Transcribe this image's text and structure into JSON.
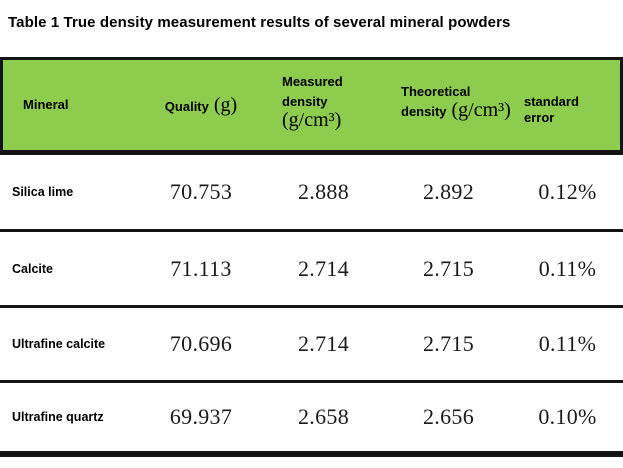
{
  "title": "Table 1 True density measurement results of several mineral powders",
  "colors": {
    "header_background": "#8ecc4e",
    "rule_lines": "#141414",
    "text": "#000000"
  },
  "header": {
    "cells": [
      {
        "label": "Mineral",
        "unit": ""
      },
      {
        "label": "Quality",
        "unit": "(g)"
      },
      {
        "label": "Measured density",
        "unit": "(g/cm³)"
      },
      {
        "label": "Theoretical density",
        "unit": "(g/cm³)"
      },
      {
        "label": "standard error",
        "unit": ""
      }
    ]
  },
  "chart_data": {
    "type": "table",
    "title": "Table 1 True density measurement results of several mineral powders",
    "columns": [
      "Mineral",
      "Quality (g)",
      "Measured density (g/cm³)",
      "Theoretical density (g/cm³)",
      "standard error"
    ],
    "rows": [
      [
        "Silica lime",
        "70.753",
        "2.888",
        "2.892",
        "0.12%"
      ],
      [
        "Calcite",
        "71.113",
        "2.714",
        "2.715",
        "0.11%"
      ],
      [
        "Ultrafine calcite",
        "70.696",
        "2.714",
        "2.715",
        "0.11%"
      ],
      [
        "Ultrafine quartz",
        "69.937",
        "2.658",
        "2.656",
        "0.10%"
      ]
    ]
  }
}
